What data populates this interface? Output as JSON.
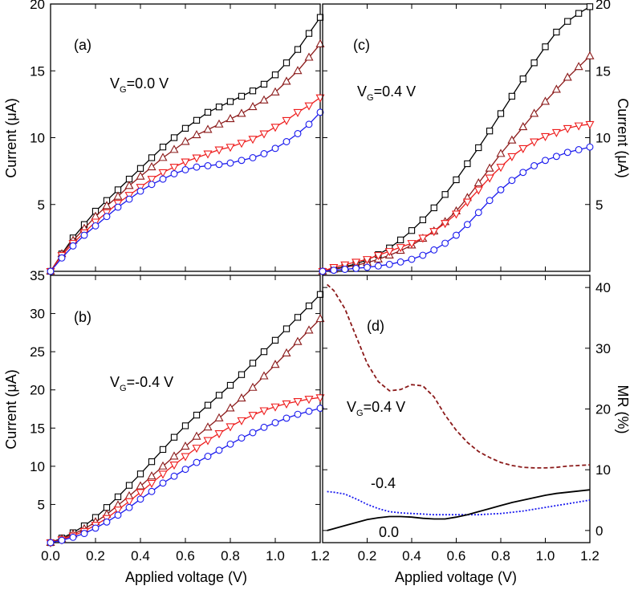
{
  "figure": {
    "xlabel_left": "Applied voltage (V)",
    "xlabel_right": "Applied voltage (V)",
    "ylabel_top_left": "Current (μA)",
    "ylabel_top_right": "Current (μA)",
    "ylabel_bottom_left": "Current (μA)",
    "ylabel_bottom_right": "MR (%)"
  },
  "chart_data": [
    {
      "type": "line",
      "panel": "a",
      "label": "(a)",
      "annotation": {
        "main": "V",
        "sub": "G",
        "rest": "=0.0 V"
      },
      "xlim": [
        0,
        1.2
      ],
      "ylim": [
        0,
        20
      ],
      "yticks": [
        5,
        10,
        15,
        20
      ],
      "xticks": [
        0.0,
        0.2,
        0.4,
        0.6,
        0.8,
        1.0,
        1.2
      ],
      "x": [
        0,
        0.05,
        0.1,
        0.15,
        0.2,
        0.25,
        0.3,
        0.35,
        0.4,
        0.45,
        0.5,
        0.55,
        0.6,
        0.65,
        0.7,
        0.75,
        0.8,
        0.85,
        0.9,
        0.95,
        1.0,
        1.05,
        1.1,
        1.15,
        1.2
      ],
      "series": [
        {
          "marker": "square",
          "color": "#000000",
          "values": [
            0,
            1.3,
            2.5,
            3.5,
            4.5,
            5.3,
            6.1,
            6.9,
            7.7,
            8.5,
            9.3,
            10.0,
            10.7,
            11.3,
            11.9,
            12.3,
            12.7,
            13.1,
            13.5,
            14.0,
            14.7,
            15.6,
            16.6,
            17.8,
            19.0
          ]
        },
        {
          "marker": "triangle-up",
          "color": "#8b1a1a",
          "values": [
            0,
            1.3,
            2.3,
            3.2,
            4.1,
            4.9,
            5.6,
            6.4,
            7.1,
            7.8,
            8.5,
            9.1,
            9.7,
            10.2,
            10.6,
            11.0,
            11.4,
            11.8,
            12.3,
            12.8,
            13.4,
            14.2,
            15.0,
            16.0,
            17.0
          ]
        },
        {
          "marker": "triangle-down",
          "color": "#ee1c1c",
          "values": [
            0,
            1.2,
            2.1,
            2.9,
            3.7,
            4.4,
            5.1,
            5.7,
            6.3,
            6.9,
            7.4,
            7.8,
            8.2,
            8.5,
            8.8,
            9.1,
            9.3,
            9.6,
            9.9,
            10.3,
            10.8,
            11.3,
            11.9,
            12.4,
            13.0
          ]
        },
        {
          "marker": "circle",
          "color": "#1a1aee",
          "values": [
            0,
            1.0,
            1.9,
            2.7,
            3.4,
            4.1,
            4.8,
            5.4,
            6.0,
            6.5,
            6.9,
            7.3,
            7.6,
            7.8,
            7.9,
            8.0,
            8.1,
            8.3,
            8.5,
            8.8,
            9.2,
            9.7,
            10.3,
            11.0,
            11.9
          ]
        }
      ]
    },
    {
      "type": "line",
      "panel": "c",
      "label": "(c)",
      "annotation": {
        "main": "V",
        "sub": "G",
        "rest": "=0.4 V"
      },
      "xlim": [
        0,
        1.2
      ],
      "ylim": [
        0,
        20
      ],
      "yticks": [
        5,
        10,
        15,
        20
      ],
      "xticks": [
        0.0,
        0.2,
        0.4,
        0.6,
        0.8,
        1.0,
        1.2
      ],
      "x": [
        0,
        0.05,
        0.1,
        0.15,
        0.2,
        0.25,
        0.3,
        0.35,
        0.4,
        0.45,
        0.5,
        0.55,
        0.6,
        0.65,
        0.7,
        0.75,
        0.8,
        0.85,
        0.9,
        0.95,
        1.0,
        1.05,
        1.1,
        1.15,
        1.2
      ],
      "series": [
        {
          "marker": "square",
          "color": "#000000",
          "values": [
            0,
            0.2,
            0.35,
            0.55,
            0.85,
            1.25,
            1.75,
            2.35,
            3.05,
            3.85,
            4.75,
            5.75,
            6.85,
            8.05,
            9.25,
            10.5,
            11.8,
            13.1,
            14.4,
            15.6,
            16.8,
            17.9,
            18.7,
            19.3,
            19.8
          ]
        },
        {
          "marker": "triangle-up",
          "color": "#8b1a1a",
          "values": [
            0,
            0.15,
            0.3,
            0.45,
            0.65,
            0.9,
            1.2,
            1.55,
            1.95,
            2.45,
            3.0,
            3.7,
            4.5,
            5.5,
            6.6,
            7.7,
            8.8,
            9.8,
            10.8,
            11.8,
            12.7,
            13.6,
            14.5,
            15.3,
            16.1
          ]
        },
        {
          "marker": "triangle-down",
          "color": "#ee1c1c",
          "values": [
            0,
            0.3,
            0.5,
            0.7,
            0.9,
            1.2,
            1.5,
            1.8,
            2.1,
            2.5,
            3.0,
            3.6,
            4.3,
            5.2,
            6.1,
            7.0,
            7.8,
            8.6,
            9.2,
            9.7,
            10.1,
            10.4,
            10.7,
            10.9,
            11.0
          ]
        },
        {
          "marker": "circle",
          "color": "#1a1aee",
          "values": [
            0,
            0.08,
            0.15,
            0.22,
            0.3,
            0.4,
            0.52,
            0.7,
            0.9,
            1.2,
            1.6,
            2.1,
            2.7,
            3.5,
            4.4,
            5.3,
            6.1,
            6.8,
            7.4,
            7.9,
            8.3,
            8.6,
            8.9,
            9.1,
            9.3
          ]
        }
      ]
    },
    {
      "type": "line",
      "panel": "b",
      "label": "(b)",
      "annotation": {
        "main": "V",
        "sub": "G",
        "rest": "=-0.4 V"
      },
      "xlim": [
        0,
        1.2
      ],
      "ylim": [
        0,
        35
      ],
      "yticks": [
        5,
        10,
        15,
        20,
        25,
        30,
        35
      ],
      "xticks": [
        0.0,
        0.2,
        0.4,
        0.6,
        0.8,
        1.0,
        1.2
      ],
      "x": [
        0,
        0.05,
        0.1,
        0.15,
        0.2,
        0.25,
        0.3,
        0.35,
        0.4,
        0.45,
        0.5,
        0.55,
        0.6,
        0.65,
        0.7,
        0.75,
        0.8,
        0.85,
        0.9,
        0.95,
        1.0,
        1.05,
        1.1,
        1.15,
        1.2
      ],
      "series": [
        {
          "marker": "square",
          "color": "#000000",
          "values": [
            0,
            0.6,
            1.3,
            2.2,
            3.3,
            4.6,
            6.0,
            7.5,
            9.0,
            10.6,
            12.2,
            13.8,
            15.3,
            16.7,
            18.0,
            19.3,
            20.6,
            22.0,
            23.5,
            25.0,
            26.5,
            28.0,
            29.5,
            31.0,
            32.5
          ]
        },
        {
          "marker": "triangle-up",
          "color": "#8b1a1a",
          "values": [
            0,
            0.5,
            1.1,
            1.8,
            2.7,
            3.7,
            4.9,
            6.1,
            7.4,
            8.7,
            10.0,
            11.3,
            12.6,
            13.9,
            15.1,
            16.3,
            17.6,
            18.9,
            20.3,
            21.8,
            23.3,
            24.8,
            26.3,
            27.8,
            29.3
          ]
        },
        {
          "marker": "triangle-down",
          "color": "#ee1c1c",
          "values": [
            0,
            0.4,
            0.9,
            1.5,
            2.3,
            3.2,
            4.3,
            5.4,
            6.6,
            7.8,
            9.0,
            10.2,
            11.3,
            12.4,
            13.4,
            14.3,
            15.2,
            16.0,
            16.7,
            17.3,
            17.8,
            18.2,
            18.5,
            18.8,
            19.0
          ]
        },
        {
          "marker": "circle",
          "color": "#1a1aee",
          "values": [
            0,
            0.3,
            0.7,
            1.2,
            1.9,
            2.7,
            3.6,
            4.6,
            5.7,
            6.7,
            7.8,
            8.7,
            9.6,
            10.5,
            11.3,
            12.1,
            12.9,
            13.7,
            14.4,
            15.1,
            15.7,
            16.3,
            16.8,
            17.2,
            17.6
          ]
        }
      ]
    },
    {
      "type": "line",
      "panel": "d",
      "label": "(d)",
      "annotation": {
        "main": "V",
        "sub": "G",
        "rest": "=0.4 V"
      },
      "curve_labels": [
        "-0.4",
        "0.0"
      ],
      "xlim": [
        0,
        1.2
      ],
      "ylim": [
        -2,
        42
      ],
      "yticks": [
        0,
        10,
        20,
        30,
        40
      ],
      "xticks": [
        0.0,
        0.2,
        0.4,
        0.6,
        0.8,
        1.0,
        1.2
      ],
      "x": [
        0.02,
        0.05,
        0.1,
        0.15,
        0.2,
        0.25,
        0.3,
        0.35,
        0.4,
        0.45,
        0.5,
        0.55,
        0.6,
        0.65,
        0.7,
        0.75,
        0.8,
        0.85,
        0.9,
        0.95,
        1.0,
        1.05,
        1.1,
        1.15,
        1.2
      ],
      "series": [
        {
          "name": "0.4",
          "color": "#8b1a1a",
          "dash": "5,3",
          "values": [
            40.5,
            39.5,
            36.5,
            32.0,
            27.5,
            24.5,
            23.0,
            23.2,
            24.0,
            23.8,
            22.0,
            19.0,
            16.5,
            14.5,
            13.0,
            12.0,
            11.2,
            10.7,
            10.4,
            10.3,
            10.3,
            10.4,
            10.6,
            10.7,
            10.8
          ]
        },
        {
          "name": "-0.4",
          "color": "#1a1aee",
          "dash": "2,2",
          "values": [
            6.4,
            6.3,
            6.0,
            5.2,
            4.3,
            3.6,
            3.1,
            2.9,
            2.8,
            2.7,
            2.6,
            2.6,
            2.6,
            2.6,
            2.6,
            2.7,
            2.8,
            3.0,
            3.2,
            3.5,
            3.8,
            4.1,
            4.4,
            4.7,
            5.0
          ]
        },
        {
          "name": "0.0",
          "color": "#000000",
          "dash": "",
          "values": [
            0.0,
            0.3,
            0.8,
            1.3,
            1.8,
            2.1,
            2.3,
            2.3,
            2.2,
            2.0,
            1.9,
            1.9,
            2.2,
            2.6,
            3.1,
            3.6,
            4.1,
            4.6,
            5.0,
            5.4,
            5.8,
            6.1,
            6.3,
            6.5,
            6.7
          ]
        }
      ]
    }
  ]
}
